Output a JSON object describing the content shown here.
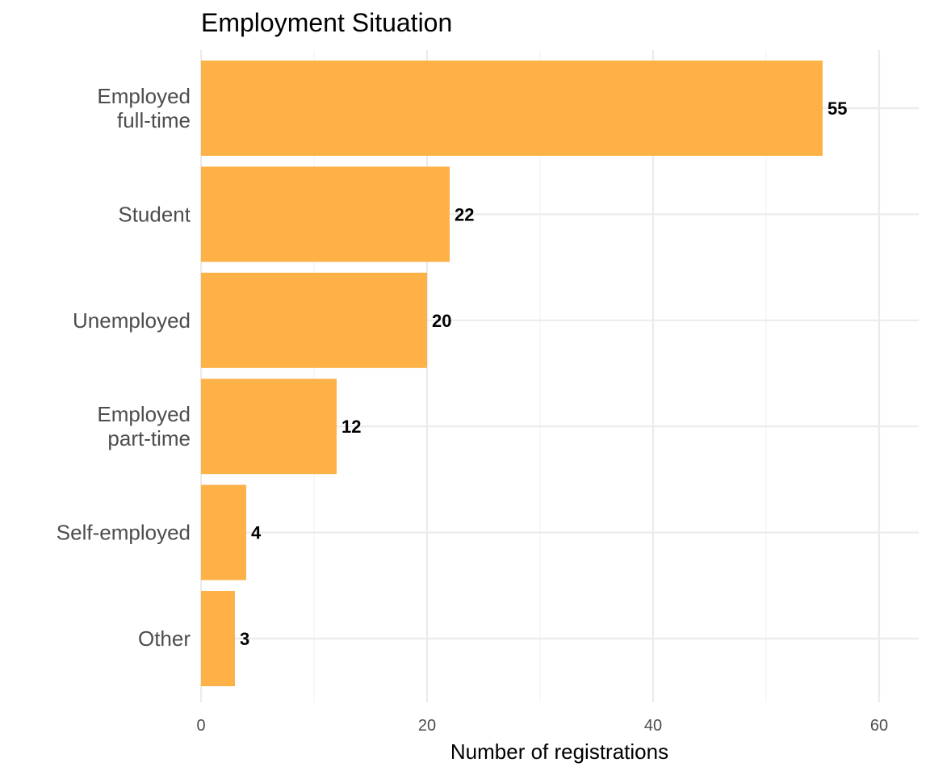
{
  "chart_data": {
    "type": "bar",
    "orientation": "horizontal",
    "title": "Employment Situation",
    "xlabel": "Number of registrations",
    "ylabel": "",
    "xlim": [
      0,
      63
    ],
    "xticks": [
      0,
      20,
      40,
      60
    ],
    "categories": [
      "Employed\nfull-time",
      "Student",
      "Unemployed",
      "Employed\npart-time",
      "Self-employed",
      "Other"
    ],
    "values": [
      55,
      22,
      20,
      12,
      4,
      3
    ],
    "bar_color": "#FDB147",
    "grid": true,
    "legend": "none",
    "data_labels": [
      "55",
      "22",
      "20",
      "12",
      "4",
      "3"
    ]
  }
}
